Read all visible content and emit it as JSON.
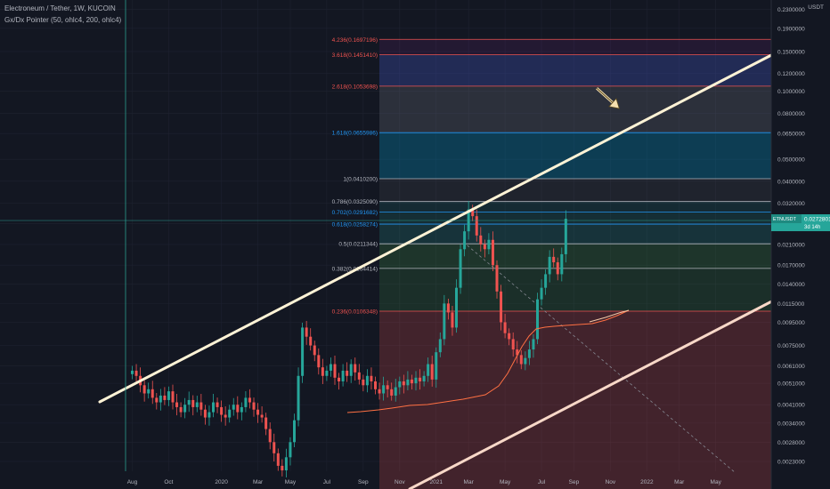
{
  "legend": {
    "title": "Electroneum / Tether, 1W, KUCOIN",
    "indicator": "Gx/Dx Pointer (50, ohlc4, 200, ohlc4)"
  },
  "chart_data": {
    "type": "candlestick",
    "symbol": "ETNUSDT",
    "quote_currency": "USDT",
    "last_price": "0.0272801",
    "countdown": "3d 14h",
    "y_scale": "log",
    "y_tick_labels": [
      "0.2300000",
      "0.1900000",
      "0.1500000",
      "0.1200000",
      "0.1000000",
      "0.0800000",
      "0.0650000",
      "0.0500000",
      "0.0400000",
      "0.0320000",
      "0.0260000",
      "0.0210000",
      "0.0170000",
      "0.0140000",
      "0.0115000",
      "0.0095000",
      "0.0075000",
      "0.0061000",
      "0.0051000",
      "0.0041000",
      "0.0034000",
      "0.0028000",
      "0.0023000"
    ],
    "x_tick_labels": [
      "Aug",
      "Oct",
      "2020",
      "Mar",
      "May",
      "Jul",
      "Sep",
      "Nov",
      "2021",
      "Mar",
      "May",
      "Jul",
      "Sep",
      "Nov",
      "2022",
      "Mar",
      "May"
    ],
    "fib_levels": [
      {
        "label": "0.236(0.0106348)",
        "color": "#ef5350"
      },
      {
        "label": "0.382(0.0164414)",
        "color": "#b2b5be"
      },
      {
        "label": "0.5(0.0211344)",
        "color": "#b2b5be"
      },
      {
        "label": "0.618(0.0258274)",
        "color": "#2196f3"
      },
      {
        "label": "0.702(0.0291682)",
        "color": "#2196f3"
      },
      {
        "label": "0.786(0.0325090)",
        "color": "#b2b5be"
      },
      {
        "label": "1(0.0410200)",
        "color": "#b2b5be"
      },
      {
        "label": "1.618(0.0655986)",
        "color": "#2196f3"
      },
      {
        "label": "2.618(0.1053698)",
        "color": "#ef5350"
      },
      {
        "label": "3.618(0.1451410)",
        "color": "#ef5350"
      },
      {
        "label": "4.236(0.1697196)",
        "color": "#ef5350"
      }
    ],
    "colors": {
      "up": "#26a69a",
      "down": "#ef5350",
      "background": "#131722",
      "trendline": "#fff3d6",
      "channel_lower": "#f8d8c8",
      "arrow": "#f5e0b0"
    }
  }
}
